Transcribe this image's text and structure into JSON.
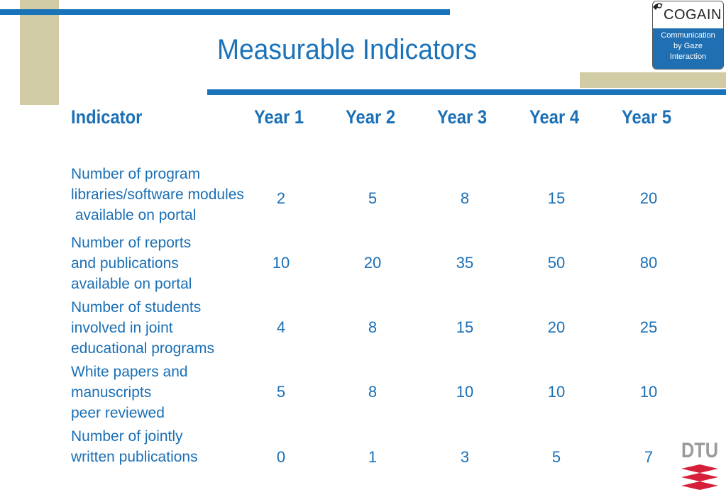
{
  "slide": {
    "title": "Measurable Indicators"
  },
  "logo": {
    "name": "COGAIN",
    "tagline": [
      "Communication",
      "by Gaze",
      "Interaction"
    ]
  },
  "dtu_logo": {
    "text": "DTU"
  },
  "table": {
    "headers": [
      "Indicator",
      "Year 1",
      "Year 2",
      "Year 3",
      "Year 4",
      "Year 5"
    ],
    "rows": [
      {
        "label": [
          "Number of program",
          "libraries/software modules",
          " available on portal"
        ],
        "values": [
          "2",
          "5",
          "8",
          "15",
          "20"
        ]
      },
      {
        "label": [
          "Number of reports",
          "and publications",
          "available on portal"
        ],
        "values": [
          "10",
          "20",
          "35",
          "50",
          "80"
        ]
      },
      {
        "label": [
          "Number of students",
          "involved in joint",
          "educational programs"
        ],
        "values": [
          "4",
          "8",
          "15",
          "20",
          "25"
        ]
      },
      {
        "label": [
          "White papers and",
          "manuscripts",
          "peer reviewed"
        ],
        "values": [
          "5",
          "8",
          "10",
          "10",
          "10"
        ]
      },
      {
        "label": [
          "Number of jointly",
          "written publications"
        ],
        "values": [
          "0",
          "1",
          "3",
          "5",
          "7"
        ]
      }
    ]
  }
}
